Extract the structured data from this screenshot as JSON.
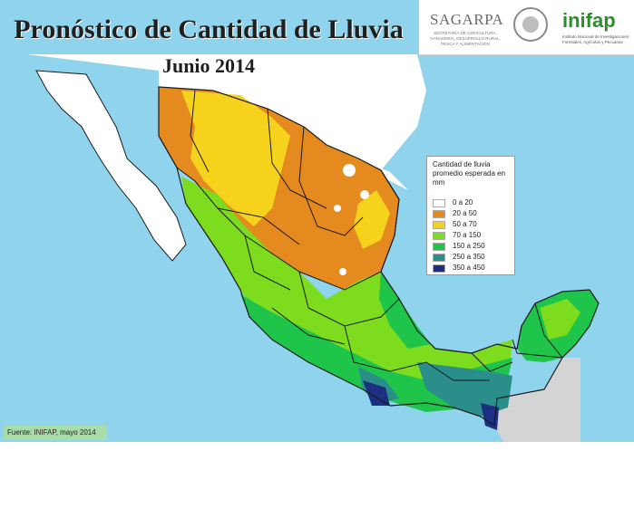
{
  "title": "Pronóstico de Cantidad de Lluvia",
  "subtitle": "Junio 2014",
  "logos": {
    "sagarpa": "SAGARPA",
    "sagarpa_subtitle": "SECRETARÍA DE AGRICULTURA, GANADERÍA, DESARROLLO RURAL, PESCA Y ALIMENTACIÓN",
    "inifap": "inifap",
    "inifap_subtitle": "Instituto Nacional de Investigaciones Forestales, Agrícolas y Pecuarias"
  },
  "legend": {
    "title": "Cantidad de lluvia promedio esperada en mm",
    "items": [
      {
        "label": "0 a 20",
        "color": "#ffffff"
      },
      {
        "label": "20 a 50",
        "color": "#e58a1f"
      },
      {
        "label": "50 a 70",
        "color": "#f5d21c"
      },
      {
        "label": "70 a 150",
        "color": "#7ddc1e"
      },
      {
        "label": "150 a 250",
        "color": "#1fc44a"
      },
      {
        "label": "250 a 350",
        "color": "#2a8f8a"
      },
      {
        "label": "350 a 450",
        "color": "#1c2f82"
      }
    ]
  },
  "source": "Fuente: INIFAP, mayo 2014",
  "colors": {
    "ocean": "#8fd3ec",
    "usa_land": "#ffffff",
    "central_america_land": "#d4d4d4",
    "borders": "#1a1a1a"
  }
}
